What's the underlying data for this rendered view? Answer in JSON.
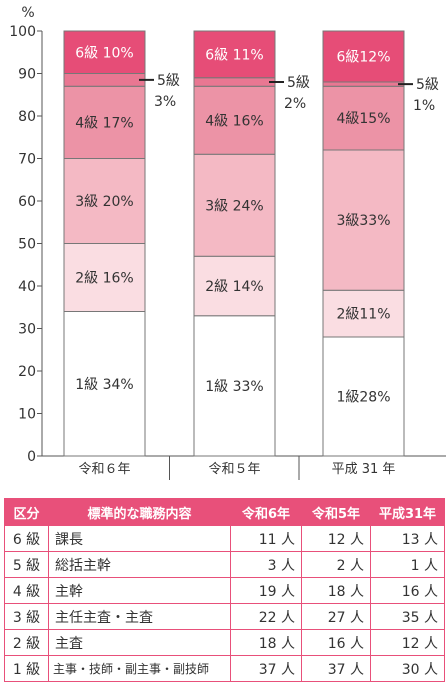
{
  "chart_data": {
    "type": "bar",
    "stacked": true,
    "y_unit": "%",
    "ylim": [
      0,
      100
    ],
    "yticks": [
      0,
      10,
      20,
      30,
      40,
      50,
      60,
      70,
      80,
      90,
      100
    ],
    "grid": false,
    "categories": [
      "令和６年",
      "令和５年",
      "平成 31 年"
    ],
    "series": [
      {
        "name": "1級",
        "values": [
          34,
          33,
          28
        ],
        "labels": [
          "1級 34%",
          "1級 33%",
          "1級28%"
        ],
        "color": "#ffffff"
      },
      {
        "name": "2級",
        "values": [
          16,
          14,
          11
        ],
        "labels": [
          "2級 16%",
          "2級 14%",
          "2級11%"
        ],
        "color": "#fadde2"
      },
      {
        "name": "3級",
        "values": [
          20,
          24,
          33
        ],
        "labels": [
          "3級 20%",
          "3級 24%",
          "3級33%"
        ],
        "color": "#f4b9c4"
      },
      {
        "name": "4級",
        "values": [
          17,
          16,
          15
        ],
        "labels": [
          "4級 17%",
          "4級 16%",
          "4級15%"
        ],
        "color": "#ec93a6"
      },
      {
        "name": "5級",
        "values": [
          3,
          2,
          1
        ],
        "labels": [
          "5級\n3%",
          "5級\n2%",
          "5級\n1%"
        ],
        "color": "#e97792"
      },
      {
        "name": "6級",
        "values": [
          10,
          11,
          12
        ],
        "labels": [
          "6級 10%",
          "6級 11%",
          "6級12%"
        ],
        "color": "#e64d77"
      }
    ]
  },
  "table": {
    "headers": [
      "区分",
      "標準的な職務内容",
      "令和6年",
      "令和5年",
      "平成31年"
    ],
    "rows": [
      {
        "grade": "6 級",
        "duty": "課長",
        "r6": "11 人",
        "r5": "12 人",
        "h31": "13 人"
      },
      {
        "grade": "5 級",
        "duty": "総括主幹",
        "r6": "3 人",
        "r5": "2 人",
        "h31": "1 人"
      },
      {
        "grade": "4 級",
        "duty": "主幹",
        "r6": "19 人",
        "r5": "18 人",
        "h31": "16 人"
      },
      {
        "grade": "3 級",
        "duty": "主任主査・主査",
        "r6": "22 人",
        "r5": "27 人",
        "h31": "35 人"
      },
      {
        "grade": "2 級",
        "duty": "主査",
        "r6": "18 人",
        "r5": "16 人",
        "h31": "12 人"
      },
      {
        "grade": "1 級",
        "duty": "主事・技師・副主事・副技師",
        "r6": "37 人",
        "r5": "37 人",
        "h31": "30 人"
      }
    ]
  }
}
